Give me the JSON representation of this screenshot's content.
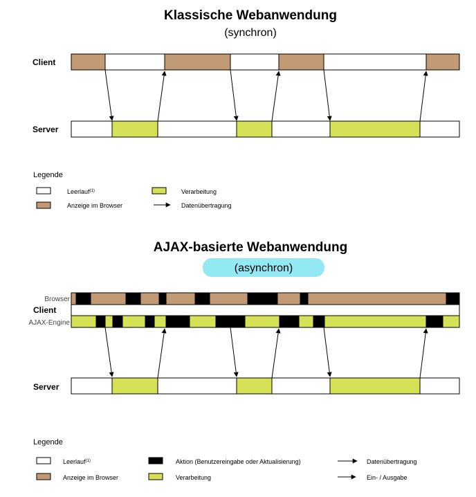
{
  "sync": {
    "title": "Klassische Webanwendung",
    "subtitle": "(synchron)",
    "client_label": "Client",
    "server_label": "Server",
    "legend": {
      "title": "Legende",
      "idle": "Leerlauf",
      "idle_footnote": "(1)",
      "display": "Anzeige im Browser",
      "processing": "Verarbeitung",
      "transfer": "Datenübertragung"
    }
  },
  "ajax": {
    "title": "AJAX-basierte Webanwendung",
    "subtitle": "(asynchron)",
    "browser_label": "Browser",
    "client_label": "Client",
    "engine_label": "AJAX-Engine",
    "server_label": "Server",
    "legend": {
      "title": "Legende",
      "idle": "Leerlauf",
      "idle_footnote": "(1)",
      "display": "Anzeige im Browser",
      "action": "Aktion (Benutzereingabe oder Aktualisierung)",
      "processing": "Verarbeitung",
      "transfer": "Datenübertragung",
      "io": "Ein- / Ausgabe"
    }
  },
  "colors": {
    "idle": "#ffffff",
    "display": "#c19a74",
    "processing": "#d6e157",
    "action": "#000000",
    "highlight": "#93e9f3",
    "stroke": "#000000"
  }
}
